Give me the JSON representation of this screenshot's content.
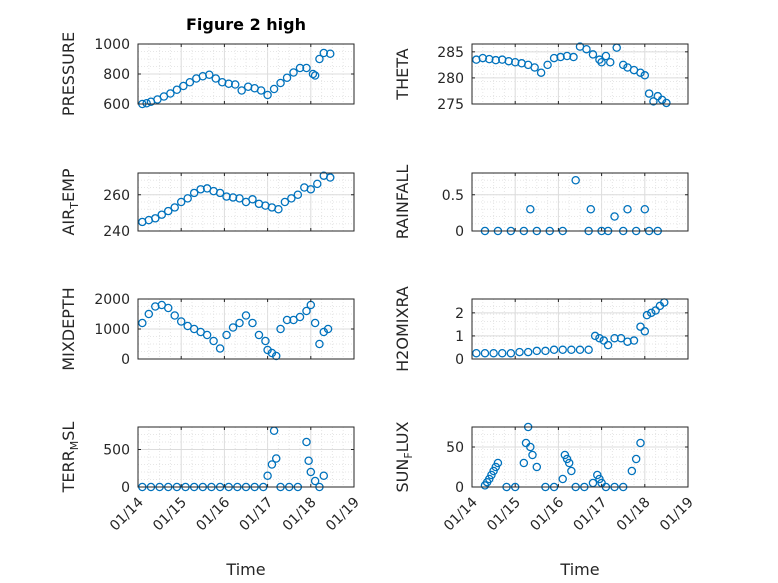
{
  "figure": {
    "title": "Figure 2 high",
    "marker_color": "#0072bd",
    "grid": true
  },
  "chart_data": [
    {
      "type": "scatter",
      "ylabel": "PRESSURE",
      "ylim": [
        600,
        1000
      ],
      "yticks": [
        "600",
        "800",
        "1000"
      ],
      "xticks": [],
      "x": [
        14.1,
        14.2,
        14.3,
        14.45,
        14.6,
        14.75,
        14.9,
        15.05,
        15.2,
        15.35,
        15.5,
        15.65,
        15.8,
        15.95,
        16.1,
        16.25,
        16.4,
        16.55,
        16.7,
        16.85,
        17.0,
        17.15,
        17.3,
        17.45,
        17.6,
        17.75,
        17.9,
        18.05,
        18.1,
        18.2,
        18.3,
        18.45
      ],
      "y": [
        600,
        605,
        615,
        630,
        650,
        670,
        695,
        720,
        745,
        770,
        785,
        795,
        770,
        745,
        735,
        730,
        690,
        715,
        705,
        690,
        660,
        700,
        740,
        775,
        810,
        840,
        840,
        800,
        790,
        900,
        940,
        935
      ]
    },
    {
      "type": "scatter",
      "ylabel": "THETA",
      "ylim": [
        275,
        286.5
      ],
      "yticks": [
        "275",
        "280",
        "285"
      ],
      "xticks": [],
      "x": [
        14.1,
        14.25,
        14.4,
        14.55,
        14.7,
        14.85,
        15.0,
        15.15,
        15.3,
        15.45,
        15.6,
        15.75,
        15.9,
        16.05,
        16.2,
        16.35,
        16.5,
        16.65,
        16.8,
        16.95,
        17.0,
        17.1,
        17.2,
        17.35,
        17.5,
        17.6,
        17.75,
        17.9,
        18.0,
        18.1,
        18.2,
        18.3,
        18.4,
        18.5
      ],
      "y": [
        283.5,
        283.8,
        283.6,
        283.4,
        283.5,
        283.2,
        283.0,
        282.8,
        282.5,
        282.0,
        281.0,
        282.5,
        283.8,
        284.0,
        284.2,
        284.0,
        286.0,
        285.5,
        284.5,
        283.5,
        283.0,
        284.2,
        283.0,
        285.8,
        282.5,
        282.0,
        281.5,
        281.0,
        280.5,
        277.0,
        275.5,
        276.5,
        275.8,
        275.2
      ]
    },
    {
      "type": "scatter",
      "ylabel": "AIR_TEMP",
      "ylim": [
        240,
        272
      ],
      "yticks": [
        "240",
        "260"
      ],
      "xticks": [],
      "x": [
        14.1,
        14.25,
        14.4,
        14.55,
        14.7,
        14.85,
        15.0,
        15.15,
        15.3,
        15.45,
        15.6,
        15.75,
        15.9,
        16.05,
        16.2,
        16.35,
        16.5,
        16.65,
        16.8,
        16.95,
        17.1,
        17.25,
        17.4,
        17.55,
        17.7,
        17.85,
        18.0,
        18.15,
        18.3,
        18.45
      ],
      "y": [
        245,
        246,
        247,
        249,
        251,
        253,
        256,
        258,
        261,
        263,
        263.5,
        262,
        261,
        259,
        258.5,
        258,
        256,
        257.5,
        255,
        254,
        253,
        252,
        256,
        258,
        260,
        264,
        263,
        266,
        270.5,
        269.5
      ]
    },
    {
      "type": "scatter",
      "ylabel": "RAINFALL",
      "ylim": [
        0,
        0.8
      ],
      "yticks": [
        "0",
        "0.5"
      ],
      "xticks": [],
      "x": [
        14.3,
        14.6,
        14.9,
        15.2,
        15.35,
        15.5,
        15.8,
        16.1,
        16.4,
        16.7,
        16.75,
        17.0,
        17.15,
        17.3,
        17.5,
        17.6,
        17.8,
        18.0,
        18.1,
        18.3
      ],
      "y": [
        0,
        0,
        0,
        0,
        0.3,
        0,
        0,
        0,
        0.7,
        0,
        0.3,
        0,
        0,
        0.2,
        0,
        0.3,
        0,
        0.3,
        0,
        0
      ]
    },
    {
      "type": "scatter",
      "ylabel": "MIXDEPTH",
      "ylim": [
        0,
        2000
      ],
      "yticks": [
        "0",
        "1000",
        "2000"
      ],
      "xticks": [],
      "x": [
        14.1,
        14.25,
        14.4,
        14.55,
        14.7,
        14.85,
        15.0,
        15.15,
        15.3,
        15.45,
        15.6,
        15.75,
        15.9,
        16.05,
        16.2,
        16.35,
        16.5,
        16.65,
        16.8,
        16.95,
        17.0,
        17.1,
        17.2,
        17.3,
        17.45,
        17.6,
        17.75,
        17.9,
        18.0,
        18.1,
        18.2,
        18.3,
        18.4
      ],
      "y": [
        1200,
        1500,
        1750,
        1800,
        1700,
        1450,
        1250,
        1100,
        1000,
        900,
        800,
        600,
        350,
        800,
        1050,
        1200,
        1450,
        1200,
        800,
        600,
        300,
        200,
        100,
        1000,
        1300,
        1300,
        1400,
        1600,
        1800,
        1200,
        500,
        900,
        1000
      ]
    },
    {
      "type": "scatter",
      "ylabel": "H2OMIXRA",
      "ylim": [
        0,
        2.6
      ],
      "yticks": [
        "0",
        "1",
        "2"
      ],
      "xticks": [],
      "x": [
        14.1,
        14.3,
        14.5,
        14.7,
        14.9,
        15.1,
        15.3,
        15.5,
        15.7,
        15.9,
        16.1,
        16.3,
        16.5,
        16.7,
        16.85,
        16.95,
        17.05,
        17.15,
        17.3,
        17.45,
        17.6,
        17.75,
        17.9,
        18.0,
        18.05,
        18.15,
        18.25,
        18.35,
        18.45
      ],
      "y": [
        0.25,
        0.25,
        0.25,
        0.25,
        0.25,
        0.3,
        0.3,
        0.35,
        0.35,
        0.4,
        0.4,
        0.4,
        0.4,
        0.4,
        1.0,
        0.9,
        0.8,
        0.6,
        0.9,
        0.9,
        0.75,
        0.8,
        1.4,
        1.2,
        1.9,
        2.0,
        2.1,
        2.3,
        2.45
      ]
    },
    {
      "type": "scatter",
      "ylabel": "TERR_MSL",
      "ylim": [
        0,
        800
      ],
      "yticks": [
        "0",
        "500"
      ],
      "xticks": [
        "01/14",
        "01/15",
        "01/16",
        "01/17",
        "01/18",
        "01/19"
      ],
      "xlabel": "Time",
      "x": [
        14.1,
        14.3,
        14.5,
        14.7,
        14.9,
        15.1,
        15.3,
        15.5,
        15.7,
        15.9,
        16.1,
        16.3,
        16.5,
        16.7,
        16.9,
        17.0,
        17.1,
        17.15,
        17.2,
        17.3,
        17.5,
        17.7,
        17.9,
        17.95,
        18.0,
        18.1,
        18.2,
        18.3
      ],
      "y": [
        0,
        0,
        0,
        0,
        0,
        0,
        0,
        0,
        0,
        0,
        0,
        0,
        0,
        0,
        0,
        150,
        300,
        750,
        380,
        0,
        0,
        0,
        600,
        350,
        200,
        80,
        0,
        150
      ]
    },
    {
      "type": "scatter",
      "ylabel": "SUN_FLUX",
      "ylim": [
        0,
        75
      ],
      "yticks": [
        "0",
        "50"
      ],
      "xticks": [
        "01/14",
        "01/15",
        "01/16",
        "01/17",
        "01/18",
        "01/19"
      ],
      "xlabel": "Time",
      "x": [
        14.3,
        14.35,
        14.4,
        14.45,
        14.5,
        14.55,
        14.6,
        14.8,
        15.0,
        15.2,
        15.25,
        15.3,
        15.35,
        15.4,
        15.5,
        15.7,
        15.9,
        16.1,
        16.15,
        16.2,
        16.25,
        16.3,
        16.4,
        16.6,
        16.8,
        16.9,
        16.95,
        17.0,
        17.1,
        17.3,
        17.5,
        17.7,
        17.8,
        17.9
      ],
      "y": [
        2,
        6,
        10,
        15,
        20,
        25,
        30,
        0,
        0,
        30,
        55,
        75,
        50,
        40,
        25,
        0,
        0,
        10,
        40,
        35,
        30,
        20,
        0,
        0,
        5,
        15,
        10,
        5,
        0,
        0,
        0,
        20,
        35,
        55
      ]
    }
  ]
}
